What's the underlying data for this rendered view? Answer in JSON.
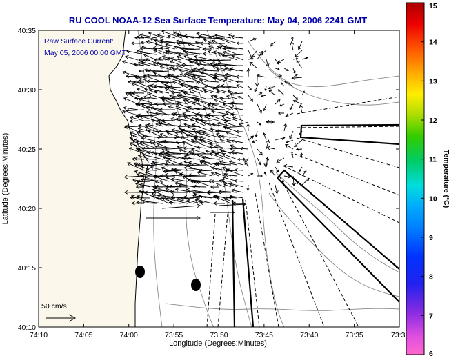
{
  "title": "RU COOL  NOAA-12  Sea Surface Temperature:  May 04, 2006 2241 GMT",
  "current_label_line1": "Raw Surface Current:",
  "current_label_line2": "May 05, 2006 00:00 GMT",
  "scale_label": "50 cm/s",
  "x_axis_title": "Longitude (Degrees:Minutes)",
  "y_axis_title": "Latitude (Degrees:Minutes)",
  "x_ticks": [
    "74:10",
    "74:05",
    "74:00",
    "73:55",
    "73:50",
    "73:45",
    "73:40",
    "73:35",
    "73:3"
  ],
  "y_ticks": [
    "40:35",
    "40:30",
    "40:25",
    "40:20",
    "40:15",
    "40:10"
  ],
  "colorbar": {
    "title": "Temperature (°C)",
    "ticks": [
      "15",
      "14",
      "13",
      "12",
      "11",
      "10",
      "9",
      "8",
      "7",
      "6"
    ]
  },
  "colors": {
    "title": "#0000aa",
    "frame": "#000000",
    "contour": "#888888",
    "land": "#fbf7ea"
  }
}
